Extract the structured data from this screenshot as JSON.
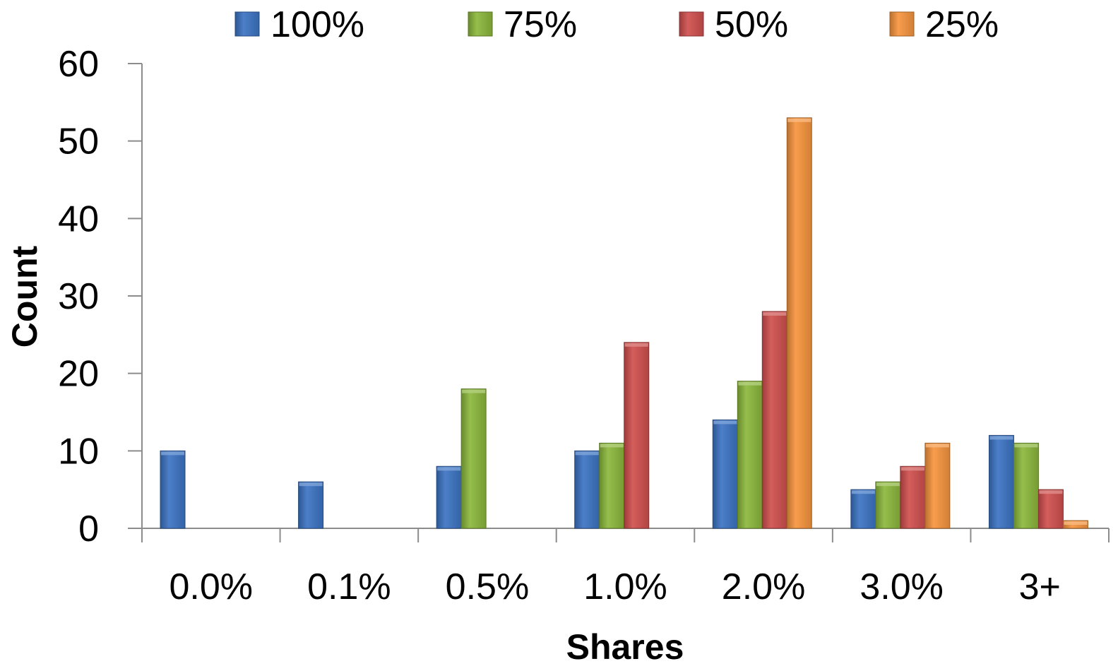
{
  "chart_data": {
    "type": "bar",
    "categories": [
      "0.0%",
      "0.1%",
      "0.5%",
      "1.0%",
      "2.0%",
      "3.0%",
      "3+"
    ],
    "series": [
      {
        "name": "100%",
        "values": [
          10,
          6,
          8,
          10,
          14,
          5,
          12
        ],
        "color": "#3c74c4"
      },
      {
        "name": "75%",
        "values": [
          0,
          0,
          18,
          11,
          19,
          6,
          11
        ],
        "color": "#8cb83c"
      },
      {
        "name": "50%",
        "values": [
          0,
          0,
          0,
          24,
          28,
          8,
          5
        ],
        "color": "#d0504e"
      },
      {
        "name": "25%",
        "values": [
          0,
          0,
          0,
          0,
          53,
          11,
          1
        ],
        "color": "#f7953e"
      }
    ],
    "title": "",
    "xlabel": "Shares",
    "ylabel": "Count",
    "ylim": [
      0,
      60
    ],
    "yticks": [
      0,
      10,
      20,
      30,
      40,
      50,
      60
    ],
    "legend": "top",
    "grid": false
  }
}
